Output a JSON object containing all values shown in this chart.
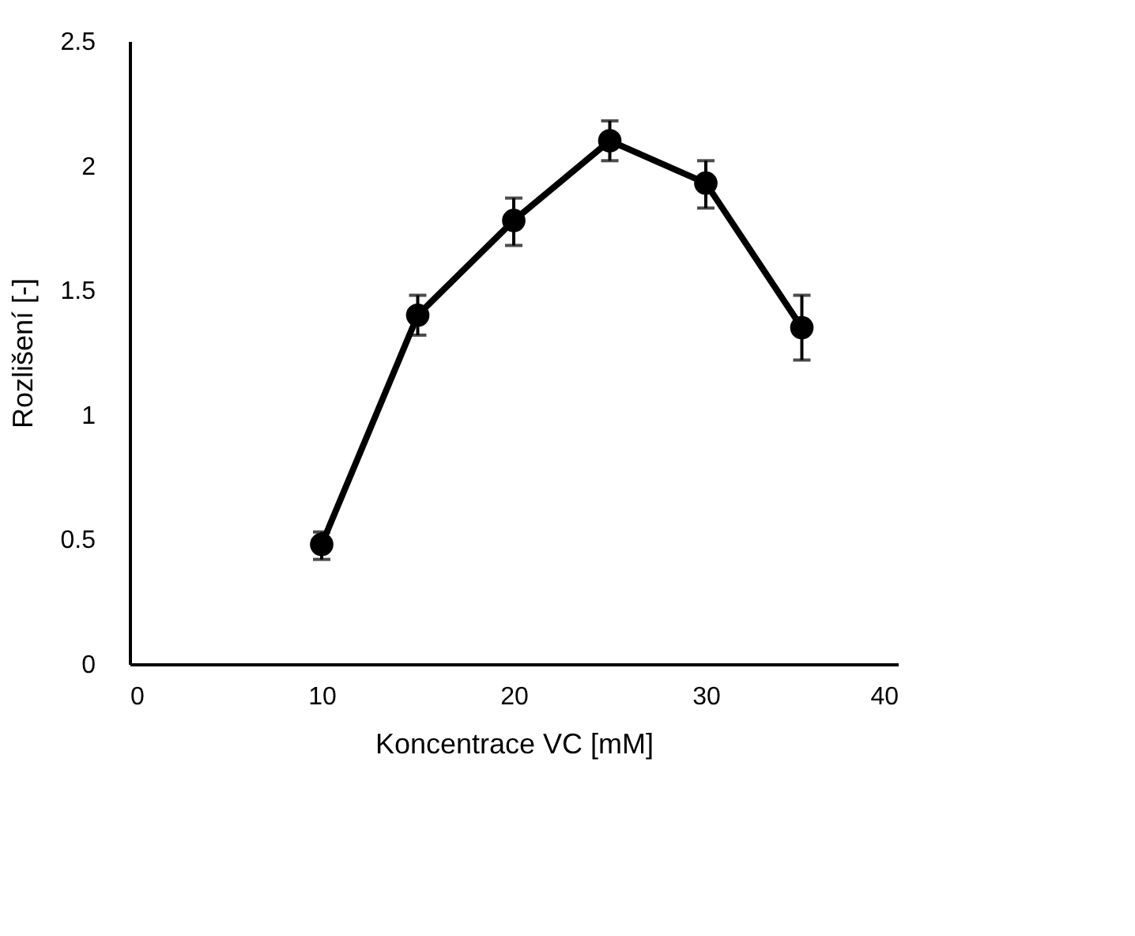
{
  "chart_data": {
    "type": "line",
    "xlabel": "Koncentrace VC [mM]",
    "ylabel": "Rozlišení [-]",
    "x": [
      10,
      15,
      20,
      25,
      30,
      35
    ],
    "series": [
      {
        "color": "#000000",
        "values": [
          0.48,
          1.4,
          1.78,
          2.1,
          1.93,
          1.35
        ],
        "errors": [
          [
            0.42,
            0.53
          ],
          [
            1.32,
            1.48
          ],
          [
            1.68,
            1.87
          ],
          [
            2.02,
            2.18
          ],
          [
            1.83,
            2.02
          ],
          [
            1.22,
            1.48
          ]
        ]
      }
    ],
    "xlim": [
      0,
      40
    ],
    "xticks": [
      0,
      10,
      20,
      30,
      40
    ],
    "ylim": [
      0,
      2.5
    ],
    "yticks": [
      0,
      0.5,
      1,
      1.5,
      2,
      2.5
    ],
    "grid": false,
    "marker": "circle",
    "line_style": "solid"
  }
}
